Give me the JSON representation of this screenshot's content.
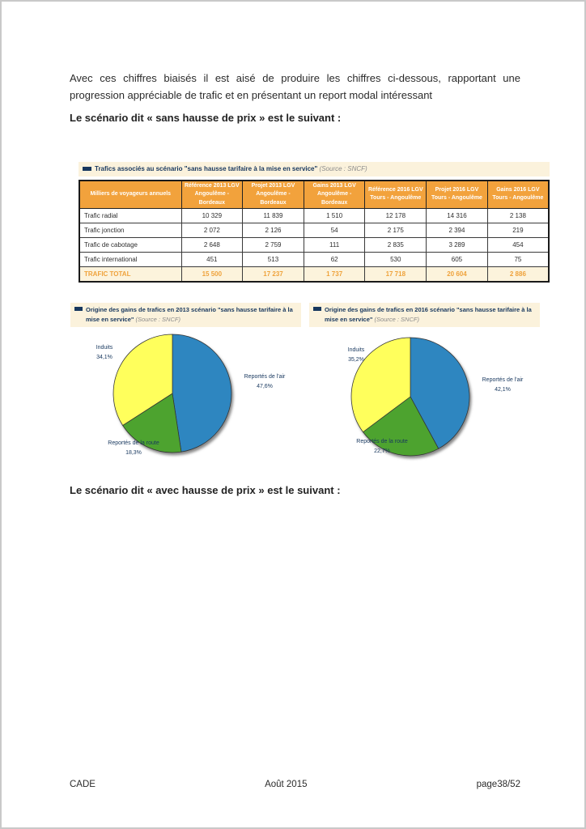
{
  "page": {
    "paragraph": "Avec ces chiffres biaisés il est aisé de produire les chiffres ci-dessous, rapportant une progression appréciable de trafic et en présentant un report modal intéressant",
    "heading_sans_hausse": "Le scénario dit « sans hausse de prix » est le suivant :",
    "heading_avec_hausse": "Le scénario dit « avec hausse de prix » est le suivant :"
  },
  "table": {
    "title": "Trafics associés au scénario \"sans hausse tarifaire à la mise en service\"",
    "source": "(Source : SNCF)",
    "columns": [
      [
        "Milliers de voyageurs annuels"
      ],
      [
        "Référence 2013 LGV",
        "Angoulême - Bordeaux"
      ],
      [
        "Projet 2013 LGV",
        "Angoulême - Bordeaux"
      ],
      [
        "Gains 2013 LGV",
        "Angoulême - Bordeaux"
      ],
      [
        "Référence 2016 LGV",
        "Tours - Angoulême"
      ],
      [
        "Projet 2016 LGV",
        "Tours - Angoulême"
      ],
      [
        "Gains 2016 LGV",
        "Tours - Angoulême"
      ]
    ],
    "rows": [
      {
        "label": "Trafic radial",
        "values": [
          "10 329",
          "11 839",
          "1 510",
          "12 178",
          "14 316",
          "2 138"
        ]
      },
      {
        "label": "Trafic jonction",
        "values": [
          "2 072",
          "2 126",
          "54",
          "2 175",
          "2 394",
          "219"
        ]
      },
      {
        "label": "Trafic de cabotage",
        "values": [
          "2 648",
          "2 759",
          "111",
          "2 835",
          "3 289",
          "454"
        ]
      },
      {
        "label": "Trafic international",
        "values": [
          "451",
          "513",
          "62",
          "530",
          "605",
          "75"
        ]
      }
    ],
    "total": {
      "label": "TRAFIC TOTAL",
      "values": [
        "15 500",
        "17 237",
        "1 737",
        "17 718",
        "20 604",
        "2 886"
      ]
    }
  },
  "chart_data": [
    {
      "type": "pie",
      "title": "Origine des gains de trafics en 2013 scénario \"sans hausse tarifaire à la mise en service\"",
      "source": "(Source : SNCF)",
      "labels": [
        "Reportés de l'air",
        "Reportés de la route",
        "Induits"
      ],
      "values": [
        47.6,
        18.3,
        34.1
      ],
      "value_labels": [
        "47,6%",
        "18,3%",
        "34,1%"
      ],
      "colors": [
        "#2e86c0",
        "#4da32f",
        "#ffff5c"
      ],
      "legend_position": "outside-labels",
      "start_angle_deg": 0,
      "direction": "clockwise"
    },
    {
      "type": "pie",
      "title": "Origine des gains de trafics en 2016 scénario \"sans hausse tarifaire à la mise en service\"",
      "source": "(Source : SNCF)",
      "labels": [
        "Reportés de l'air",
        "Reportés de la route",
        "Induits"
      ],
      "values": [
        42.1,
        22.7,
        35.2
      ],
      "value_labels": [
        "42,1%",
        "22,7%",
        "35,2%"
      ],
      "colors": [
        "#2e86c0",
        "#4da32f",
        "#ffff5c"
      ],
      "legend_position": "outside-labels",
      "start_angle_deg": 0,
      "direction": "clockwise"
    }
  ],
  "footer": {
    "left": "CADE",
    "center": "Août 2015",
    "right": "page38/52"
  },
  "colors": {
    "table_header_bg": "#f2a23c",
    "cream_bg": "#fbf2dc",
    "navy_text": "#17375e",
    "total_text": "#efa23b",
    "pie_blue": "#2e86c0",
    "pie_green": "#4da32f",
    "pie_yellow": "#ffff5c"
  }
}
